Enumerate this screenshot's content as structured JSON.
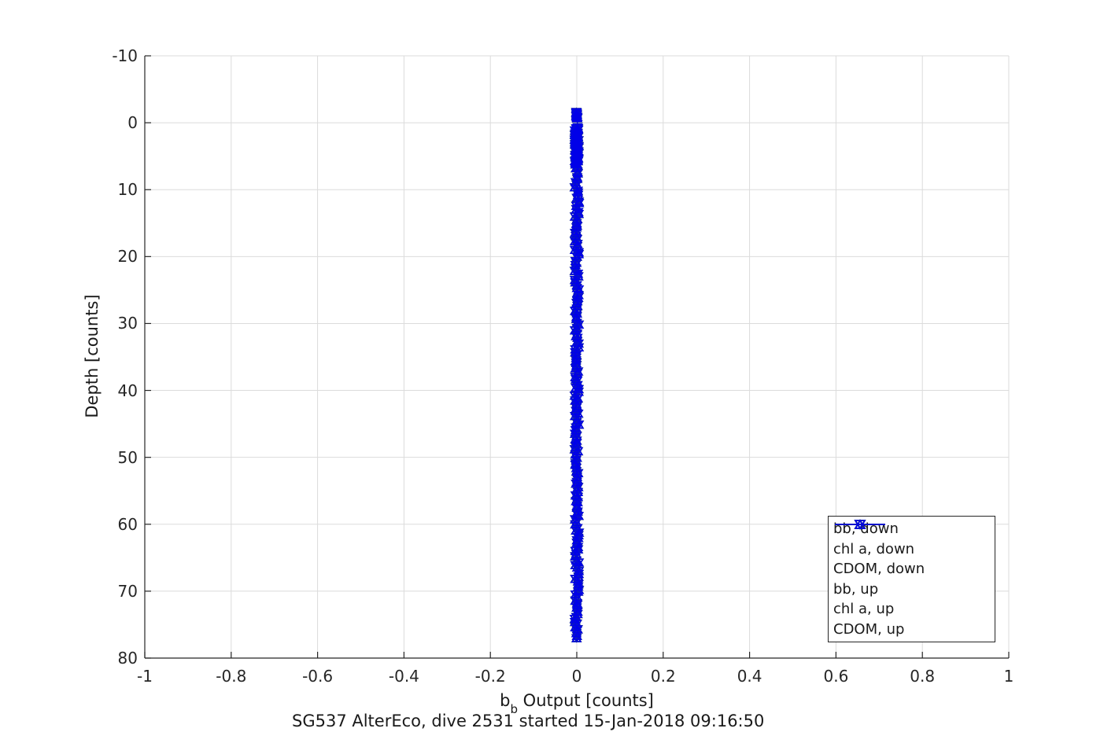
{
  "chart_data": {
    "type": "scatter",
    "title": "SG537 AlterEco, dive 2531 started 15-Jan-2018 09:16:50",
    "xlabel": "b_b Output [counts]",
    "xlabel_base": "b",
    "xlabel_sub": "b",
    "xlabel_rest": " Output [counts]",
    "ylabel": "Depth [counts]",
    "xlim": [
      -1,
      1
    ],
    "ylim": [
      -10,
      80
    ],
    "y_axis_reversed": true,
    "grid": true,
    "xticks": [
      -1,
      -0.8,
      -0.6,
      -0.4,
      -0.2,
      0,
      0.2,
      0.4,
      0.6,
      0.8,
      1
    ],
    "xtick_labels": [
      "-1",
      "-0.8",
      "-0.6",
      "-0.4",
      "-0.2",
      "0",
      "0.2",
      "0.4",
      "0.6",
      "0.8",
      "1"
    ],
    "yticks": [
      -10,
      0,
      10,
      20,
      30,
      40,
      50,
      60,
      70,
      80
    ],
    "ytick_labels": [
      "-10",
      "0",
      "10",
      "20",
      "30",
      "40",
      "50",
      "60",
      "70",
      "80"
    ],
    "colors": {
      "red": "#d40000",
      "green": "#00c800",
      "blue": "#0000e8",
      "axis": "#262626",
      "grid": "#dbdbdb",
      "text": "#1a1a1a"
    },
    "legend": {
      "position": "southeast",
      "entries": [
        {
          "label": "bb, down",
          "color": "#d40000",
          "marker": "triangle-down"
        },
        {
          "label": "chl a, down",
          "color": "#00c800",
          "marker": "triangle-down"
        },
        {
          "label": "CDOM, down",
          "color": "#0000e8",
          "marker": "triangle-down"
        },
        {
          "label": "bb, up",
          "color": "#d40000",
          "marker": "triangle-up"
        },
        {
          "label": "chl a, up",
          "color": "#00c800",
          "marker": "triangle-up"
        },
        {
          "label": "CDOM, up",
          "color": "#0000e8",
          "marker": "triangle-up"
        }
      ]
    },
    "series": [
      {
        "name": "bb, down",
        "color": "#d40000",
        "marker": "triangle-down",
        "x_value_approx": 0,
        "depth_range": [
          -1.6,
          77
        ]
      },
      {
        "name": "chl a, down",
        "color": "#00c800",
        "marker": "triangle-down",
        "x_value_approx": 0,
        "depth_range": [
          -1.6,
          77
        ]
      },
      {
        "name": "CDOM, down",
        "color": "#0000e8",
        "marker": "triangle-down",
        "x_value_approx": 0,
        "depth_range": [
          -1.6,
          77
        ]
      },
      {
        "name": "bb, up",
        "color": "#d40000",
        "marker": "triangle-up",
        "x_value_approx": 0,
        "depth_range": [
          -1.6,
          77
        ]
      },
      {
        "name": "chl a, up",
        "color": "#00c800",
        "marker": "triangle-up",
        "x_value_approx": 0,
        "depth_range": [
          -1.6,
          77
        ]
      },
      {
        "name": "CDOM, up",
        "color": "#0000e8",
        "marker": "triangle-up",
        "x_value_approx": 0,
        "depth_range": [
          -1.6,
          77
        ]
      }
    ],
    "profile_render": {
      "x_center": 0,
      "note": "all sensor outputs ~0 counts over full depth range; surface cluster near depth -1",
      "segments": [
        {
          "depth_min": -1.6,
          "depth_max": -0.65,
          "n": 16,
          "x_jitter": 0.002
        },
        {
          "depth_min": 0.7,
          "depth_max": 6.2,
          "n": 50,
          "x_jitter": 0.005
        },
        {
          "depth_min": 0.8,
          "depth_max": 77.0,
          "n": 190,
          "x_jitter": 0.005
        }
      ]
    }
  }
}
